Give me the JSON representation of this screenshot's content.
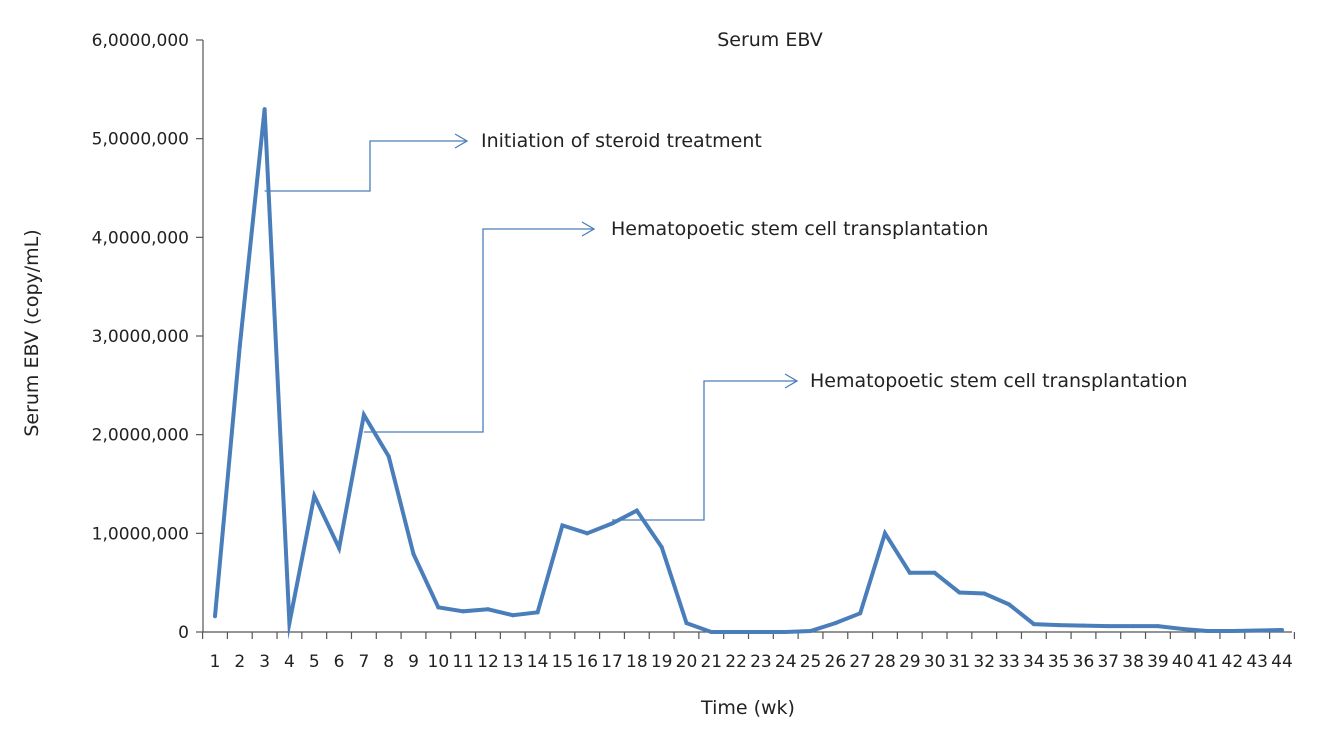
{
  "chart_data": {
    "type": "line",
    "title": "Serum EBV",
    "xlabel": "Time (wk)",
    "ylabel": "Serum EBV (copy/mL)",
    "ylim": [
      0,
      60000000
    ],
    "yticks": [
      0,
      10000000,
      20000000,
      30000000,
      40000000,
      50000000,
      60000000
    ],
    "ytick_labels": [
      "0",
      "1,0000,000",
      "2,0000,000",
      "3,0000,000",
      "4,0000,000",
      "5,0000,000",
      "6,0000,000"
    ],
    "x": [
      1,
      2,
      3,
      4,
      5,
      6,
      7,
      8,
      9,
      10,
      11,
      12,
      13,
      14,
      15,
      16,
      17,
      18,
      19,
      20,
      21,
      22,
      23,
      24,
      25,
      26,
      27,
      28,
      29,
      30,
      31,
      32,
      33,
      34,
      35,
      36,
      37,
      38,
      39,
      40,
      41,
      42,
      43,
      44
    ],
    "series": [
      {
        "color": "#4a7ebb",
        "values": [
          1600000,
          29000000,
          53000000,
          900000,
          13800000,
          8500000,
          22000000,
          17800000,
          7900000,
          2500000,
          2100000,
          2300000,
          1700000,
          2000000,
          10800000,
          10000000,
          11000000,
          12300000,
          8600000,
          900000,
          0,
          0,
          0,
          0,
          100000,
          900000,
          1900000,
          10000000,
          6000000,
          6000000,
          4000000,
          3900000,
          2800000,
          800000,
          700000,
          650000,
          600000,
          600000,
          600000,
          300000,
          100000,
          100000,
          150000,
          200000
        ]
      }
    ],
    "annotations": [
      {
        "text": "Initiation of steroid treatment",
        "x": 3,
        "color": "#4a7ebb"
      },
      {
        "text": "Hematopoetic stem cell transplantation",
        "x": 7,
        "color": "#4a7ebb"
      },
      {
        "text": "Hematopoetic stem cell transplantation",
        "x": 17,
        "color": "#4a7ebb"
      }
    ],
    "grid": false,
    "legend": "none"
  }
}
